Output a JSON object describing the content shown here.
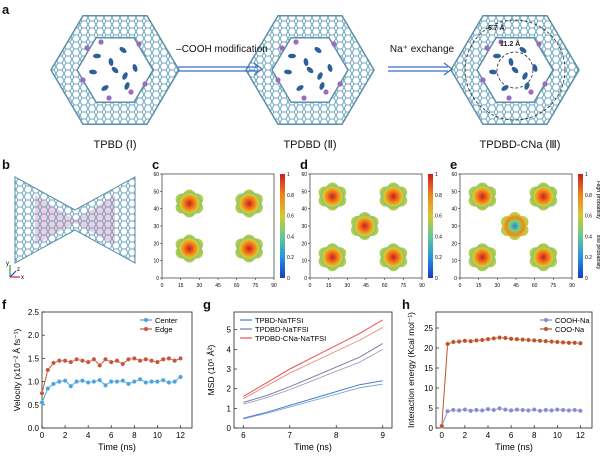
{
  "panel_labels": {
    "a": "a",
    "b": "b",
    "c": "c",
    "d": "d",
    "e": "e",
    "f": "f",
    "g": "g",
    "h": "h"
  },
  "structures": [
    {
      "caption": "TPBD (Ⅰ)"
    },
    {
      "caption": "TPDBD (Ⅱ)"
    },
    {
      "caption": "TPDBD-CNa (Ⅲ)"
    }
  ],
  "arrows": [
    {
      "label": "–COOH modification"
    },
    {
      "label": "Na⁺ exchange"
    }
  ],
  "distance_labels": [
    "6.7 Å",
    "11.2 Å"
  ],
  "heatmaps": {
    "x_ticks": [
      "0",
      "15",
      "30",
      "45",
      "60",
      "75",
      "90"
    ],
    "y_ticks": [
      "0",
      "10",
      "20",
      "30",
      "40",
      "50",
      "60"
    ],
    "colorbar_ticks": [
      "0",
      "0.2",
      "0.4",
      "0.6",
      "0.8",
      "1"
    ],
    "colorbar_high": "High probability",
    "colorbar_low": "low probability",
    "colors": {
      "high": "#c81e1e",
      "mid": "#f5c518",
      "low": "#1a3cc8"
    }
  },
  "axis_icon": {
    "y": "y",
    "x": "x",
    "z": "z"
  },
  "chart_data": [
    {
      "panel": "f",
      "type": "line",
      "xlabel": "Time (ns)",
      "ylabel": "Velocity (x10⁻² Å fs⁻¹)",
      "xlim": [
        0,
        13
      ],
      "ylim": [
        0,
        2.5
      ],
      "xticks": [
        0,
        2,
        4,
        6,
        8,
        10,
        12
      ],
      "yticks": [
        0.0,
        0.5,
        1.0,
        1.5,
        2.0,
        2.5
      ],
      "legend_position": "top-right",
      "series": [
        {
          "name": "Center",
          "color": "#4aa3df",
          "x": [
            0,
            0.5,
            1,
            1.5,
            2,
            2.5,
            3,
            3.5,
            4,
            4.5,
            5,
            5.5,
            6,
            6.5,
            7,
            7.5,
            8,
            8.5,
            9,
            9.5,
            10,
            10.5,
            11,
            11.5,
            12
          ],
          "y": [
            0.55,
            0.85,
            0.95,
            1.0,
            1.02,
            0.9,
            1.0,
            1.02,
            0.98,
            1.0,
            1.03,
            0.92,
            1.0,
            1.0,
            1.02,
            0.95,
            1.0,
            1.05,
            0.98,
            1.0,
            1.0,
            1.03,
            0.98,
            1.0,
            1.1
          ]
        },
        {
          "name": "Edge",
          "color": "#c8553a",
          "x": [
            0,
            0.5,
            1,
            1.5,
            2,
            2.5,
            3,
            3.5,
            4,
            4.5,
            5,
            5.5,
            6,
            6.5,
            7,
            7.5,
            8,
            8.5,
            9,
            9.5,
            10,
            10.5,
            11,
            11.5,
            12
          ],
          "y": [
            0.75,
            1.25,
            1.4,
            1.45,
            1.45,
            1.42,
            1.48,
            1.45,
            1.42,
            1.48,
            1.35,
            1.48,
            1.42,
            1.45,
            1.38,
            1.48,
            1.5,
            1.45,
            1.48,
            1.45,
            1.42,
            1.48,
            1.5,
            1.45,
            1.5
          ]
        }
      ]
    },
    {
      "panel": "g",
      "type": "line",
      "xlabel": "Time (ns)",
      "ylabel": "MSD (10⁵ Å²)",
      "xlim": [
        5.8,
        9.2
      ],
      "ylim": [
        0,
        5.9
      ],
      "xticks": [
        6,
        7,
        8,
        9
      ],
      "yticks": [
        0,
        1,
        2,
        3,
        4,
        5
      ],
      "legend_position": "top-left",
      "series": [
        {
          "name": "TPBD-NaTFSI",
          "color": "#4a7fc8",
          "x": [
            6,
            6.5,
            7,
            7.5,
            8,
            8.5,
            9
          ],
          "y": [
            0.5,
            0.8,
            1.15,
            1.5,
            1.85,
            2.2,
            2.4
          ]
        },
        {
          "name": "TPDBD-NaTFSI",
          "color": "#7a7aa8",
          "x": [
            6,
            6.5,
            7,
            7.5,
            8,
            8.5,
            9
          ],
          "y": [
            1.3,
            1.65,
            2.1,
            2.6,
            3.1,
            3.6,
            4.3
          ]
        },
        {
          "name": "TPDBD-CNa-NaTFSI",
          "color": "#e85050",
          "x": [
            6,
            6.5,
            7,
            7.5,
            8,
            8.5,
            9
          ],
          "y": [
            1.6,
            2.3,
            3.0,
            3.6,
            4.2,
            4.8,
            5.5
          ]
        }
      ]
    },
    {
      "panel": "h",
      "type": "line",
      "xlabel": "Time (ns)",
      "ylabel": "Interaction energy (Kcal mol⁻¹)",
      "xlim": [
        -0.5,
        13
      ],
      "ylim": [
        0,
        29
      ],
      "xticks": [
        0,
        2,
        4,
        6,
        8,
        10,
        12
      ],
      "yticks": [
        0,
        5,
        10,
        15,
        20,
        25
      ],
      "legend_position": "top-right",
      "series": [
        {
          "name": "COOH-Na",
          "color": "#8a8ad0",
          "x": [
            0,
            0.5,
            1,
            1.5,
            2,
            2.5,
            3,
            3.5,
            4,
            4.5,
            5,
            5.5,
            6,
            6.5,
            7,
            7.5,
            8,
            8.5,
            9,
            9.5,
            10,
            10.5,
            11,
            11.5,
            12
          ],
          "y": [
            0.5,
            4.2,
            4.5,
            4.4,
            4.6,
            4.3,
            4.5,
            4.4,
            4.7,
            4.5,
            4.9,
            4.6,
            4.4,
            4.6,
            4.5,
            4.4,
            4.6,
            4.3,
            4.5,
            4.4,
            4.6,
            4.5,
            4.4,
            4.5,
            4.3
          ]
        },
        {
          "name": "COO-Na",
          "color": "#c0522a",
          "x": [
            0,
            0.5,
            1,
            1.5,
            2,
            2.5,
            3,
            3.5,
            4,
            4.5,
            5,
            5.5,
            6,
            6.5,
            7,
            7.5,
            8,
            8.5,
            9,
            9.5,
            10,
            10.5,
            11,
            11.5,
            12
          ],
          "y": [
            0.5,
            21.0,
            21.5,
            21.6,
            21.8,
            21.7,
            21.9,
            22.0,
            22.2,
            22.4,
            22.6,
            22.5,
            22.3,
            22.2,
            22.1,
            22.0,
            21.9,
            21.8,
            21.7,
            21.6,
            21.5,
            21.4,
            21.3,
            21.3,
            21.2
          ]
        }
      ]
    }
  ]
}
